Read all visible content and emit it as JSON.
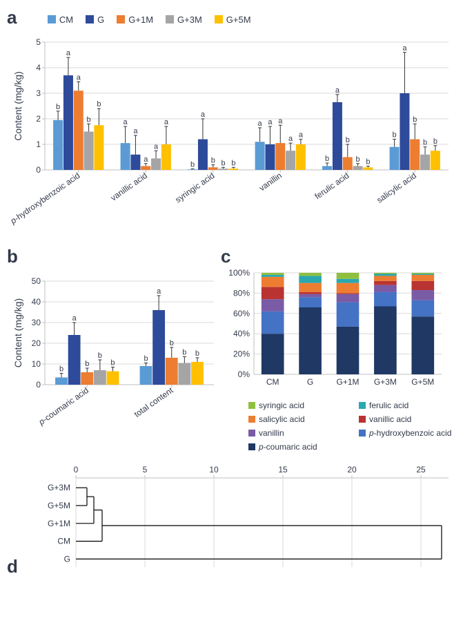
{
  "legend_main": [
    {
      "label": "CM",
      "color": "#5b9bd5"
    },
    {
      "label": "G",
      "color": "#2e4a9b"
    },
    {
      "label": "G+1M",
      "color": "#ed7d31"
    },
    {
      "label": "G+3M",
      "color": "#a5a5a5"
    },
    {
      "label": "G+5M",
      "color": "#ffc000"
    }
  ],
  "panel_a": {
    "label": "a",
    "ylabel": "Content (mg/kg)",
    "ylim": [
      0,
      5
    ],
    "ytick_step": 1,
    "categories": [
      {
        "label": "p-hydroxybenzoic acid",
        "italic_p": true,
        "values": [
          1.95,
          3.7,
          3.1,
          1.5,
          1.75
        ],
        "err": [
          0.35,
          0.7,
          0.35,
          0.3,
          0.65
        ],
        "sig": [
          "b",
          "a",
          "a",
          "b",
          "b"
        ]
      },
      {
        "label": "vanillic acid",
        "italic_p": false,
        "values": [
          1.05,
          0.6,
          0.15,
          0.45,
          1.0
        ],
        "err": [
          0.65,
          0.75,
          0.1,
          0.3,
          0.7
        ],
        "sig": [
          "a",
          "a",
          "a",
          "a",
          "a"
        ]
      },
      {
        "label": "syringic acid",
        "italic_p": false,
        "values": [
          0.02,
          1.2,
          0.1,
          0.05,
          0.05
        ],
        "err": [
          0.02,
          0.8,
          0.1,
          0.05,
          0.05
        ],
        "sig": [
          "b",
          "a",
          "b",
          "b",
          "b"
        ]
      },
      {
        "label": "vanillin",
        "italic_p": false,
        "values": [
          1.1,
          1.0,
          1.05,
          0.75,
          1.0
        ],
        "err": [
          0.55,
          0.7,
          0.7,
          0.3,
          0.2
        ],
        "sig": [
          "a",
          "a",
          "a",
          "a",
          "a"
        ]
      },
      {
        "label": "ferulic acid",
        "italic_p": false,
        "values": [
          0.15,
          2.65,
          0.5,
          0.15,
          0.1
        ],
        "err": [
          0.12,
          0.3,
          0.5,
          0.1,
          0.05
        ],
        "sig": [
          "b",
          "a",
          "b",
          "b",
          "b"
        ]
      },
      {
        "label": "salicylic acid",
        "italic_p": false,
        "values": [
          0.9,
          3.0,
          1.2,
          0.6,
          0.75
        ],
        "err": [
          0.3,
          1.6,
          0.6,
          0.3,
          0.2
        ],
        "sig": [
          "b",
          "a",
          "b",
          "b",
          "b"
        ]
      }
    ]
  },
  "panel_b": {
    "label": "b",
    "ylabel": "Content (mg/kg)",
    "ylim": [
      0,
      50
    ],
    "ytick_step": 10,
    "categories": [
      {
        "label": "p-coumaric acid",
        "italic_p": true,
        "values": [
          3.5,
          24,
          6,
          7,
          6.5
        ],
        "err": [
          2.0,
          6,
          2,
          5,
          2
        ],
        "sig": [
          "b",
          "a",
          "b",
          "b",
          "b"
        ]
      },
      {
        "label": "total content",
        "italic_p": false,
        "values": [
          9,
          36,
          13,
          10.5,
          11
        ],
        "err": [
          1.5,
          7,
          5,
          3,
          2
        ],
        "sig": [
          "b",
          "a",
          "b",
          "b",
          "b"
        ]
      }
    ]
  },
  "panel_c": {
    "label": "c",
    "x_categories": [
      "CM",
      "G",
      "G+1M",
      "G+3M",
      "G+5M"
    ],
    "series": [
      {
        "key": "p-coumaric acid",
        "color": "#1f3864",
        "italic_p": true
      },
      {
        "key": "p-hydroxybenzoic acid",
        "color": "#4472c4",
        "italic_p": true
      },
      {
        "key": "vanillin",
        "color": "#7a5ba6",
        "italic_p": false
      },
      {
        "key": "vanillic acid",
        "color": "#b93431",
        "italic_p": false
      },
      {
        "key": "salicylic acid",
        "color": "#ed7d31",
        "italic_p": false
      },
      {
        "key": "ferulic acid",
        "color": "#2aa8b0",
        "italic_p": false
      },
      {
        "key": "syringic acid",
        "color": "#8fbf3f",
        "italic_p": false
      }
    ],
    "data_pct": {
      "CM": [
        40,
        22,
        12,
        12,
        10,
        2,
        2
      ],
      "G": [
        66,
        10,
        3,
        2,
        9,
        7,
        3
      ],
      "G+1M": [
        47,
        24,
        8,
        1,
        10,
        4,
        6
      ],
      "G+3M": [
        67,
        14,
        7,
        4,
        5,
        2,
        1
      ],
      "G+5M": [
        57,
        16,
        10,
        9,
        6,
        1,
        1
      ]
    },
    "ytick_step": 20,
    "legend_order": [
      [
        "syringic acid",
        "ferulic acid"
      ],
      [
        "salicylic acid",
        "vanillic acid"
      ],
      [
        "vanillin",
        "p-hydroxybenzoic acid"
      ],
      [
        "p-coumaric acid",
        null
      ]
    ]
  },
  "panel_d": {
    "label": "d",
    "xlim": [
      0,
      27
    ],
    "xticks": [
      0,
      5,
      10,
      15,
      20,
      25
    ],
    "order": [
      "G+3M",
      "G+5M",
      "G+1M",
      "CM",
      "G"
    ],
    "merges": [
      {
        "a": "G+3M",
        "b": "G+5M",
        "height": 0.8,
        "out": "n1"
      },
      {
        "a": "n1",
        "b": "G+1M",
        "height": 1.3,
        "out": "n2"
      },
      {
        "a": "n2",
        "b": "CM",
        "height": 1.9,
        "out": "n3"
      },
      {
        "a": "n3",
        "b": "G",
        "height": 26.5,
        "out": "n4"
      }
    ]
  },
  "colors": {
    "axis": "#bfbfbf",
    "grid": "#d9d9d9",
    "text": "#333a4a"
  }
}
